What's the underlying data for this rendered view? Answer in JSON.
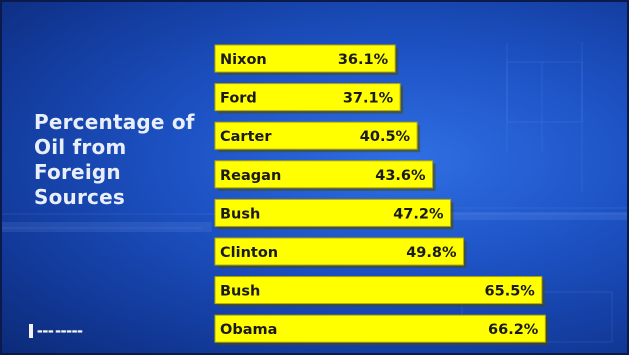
{
  "slide": {
    "title": "Percentage of Oil from Foreign Sources",
    "colors": {
      "background": "#1d52c4",
      "bar": "#ffff00",
      "bar_text": "#1a1a1a",
      "title": "#e9eefb"
    },
    "logo_icon": "publisher-logo-icon"
  },
  "chart_data": {
    "type": "bar",
    "orientation": "horizontal",
    "title": "Percentage of Oil from Foreign Sources",
    "categories": [
      "Nixon",
      "Ford",
      "Carter",
      "Reagan",
      "Bush",
      "Clinton",
      "Bush",
      "Obama"
    ],
    "values": [
      36.1,
      37.1,
      40.5,
      43.6,
      47.2,
      49.8,
      65.5,
      66.2
    ],
    "value_labels": [
      "36.1%",
      "37.1%",
      "40.5%",
      "43.6%",
      "47.2%",
      "49.8%",
      "65.5%",
      "66.2%"
    ],
    "xlabel": "",
    "ylabel": "",
    "grid": false,
    "legend": "none"
  }
}
